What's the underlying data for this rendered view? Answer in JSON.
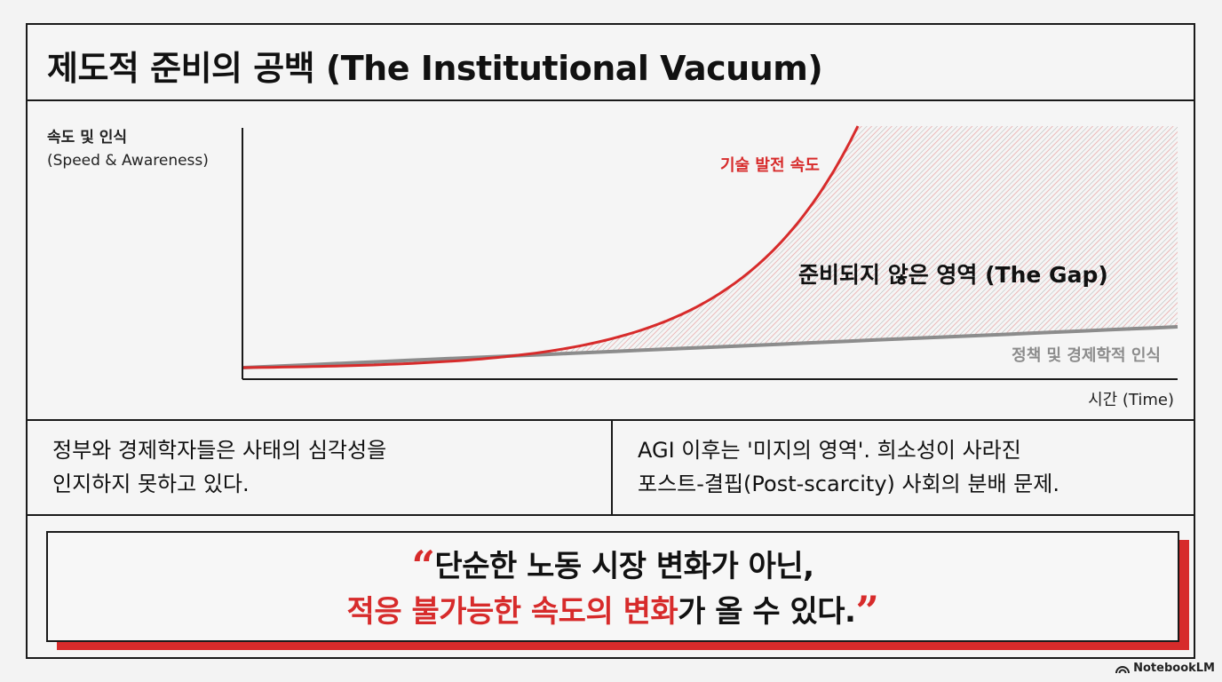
{
  "title": "제도적 준비의 공백 (The Institutional Vacuum)",
  "chart": {
    "ylabel_ko": "속도 및 인식",
    "ylabel_en": "(Speed & Awareness)",
    "xlabel": "시간 (Time)",
    "tech_label": "기술 발전 속도",
    "policy_label": "정책 및 경제학적 인식",
    "gap_label": "준비되지 않은 영역 (The Gap)"
  },
  "chart_data": {
    "type": "line",
    "xlabel": "시간 (Time)",
    "ylabel": "속도 및 인식 (Speed & Awareness)",
    "series": [
      {
        "name": "기술 발전 속도",
        "curve": "exponential",
        "color": "#d72b2b"
      },
      {
        "name": "정책 및 경제학적 인식",
        "curve": "linear",
        "color": "#8c8c8c"
      }
    ],
    "shaded_region": "준비되지 않은 영역 (The Gap)"
  },
  "info": {
    "left_line1": "정부와 경제학자들은 사태의 심각성을",
    "left_line2": "인지하지 못하고 있다.",
    "right_line1": "AGI 이후는 '미지의 영역'. 희소성이 사라진",
    "right_line2": "포스트-결핍(Post-scarcity) 사회의 분배 문제."
  },
  "quote": {
    "open_mark": "“",
    "line1": "단순한 노동 시장 변화가 아닌,",
    "line2_red": "적응 불가능한 속도의 변화",
    "line2_rest": "가 올 수 있다.",
    "close_mark": "”"
  },
  "colors": {
    "accent": "#d72b2b",
    "policy": "#8c8c8c",
    "border": "#1a1a1a"
  },
  "watermark": "NotebookLM"
}
